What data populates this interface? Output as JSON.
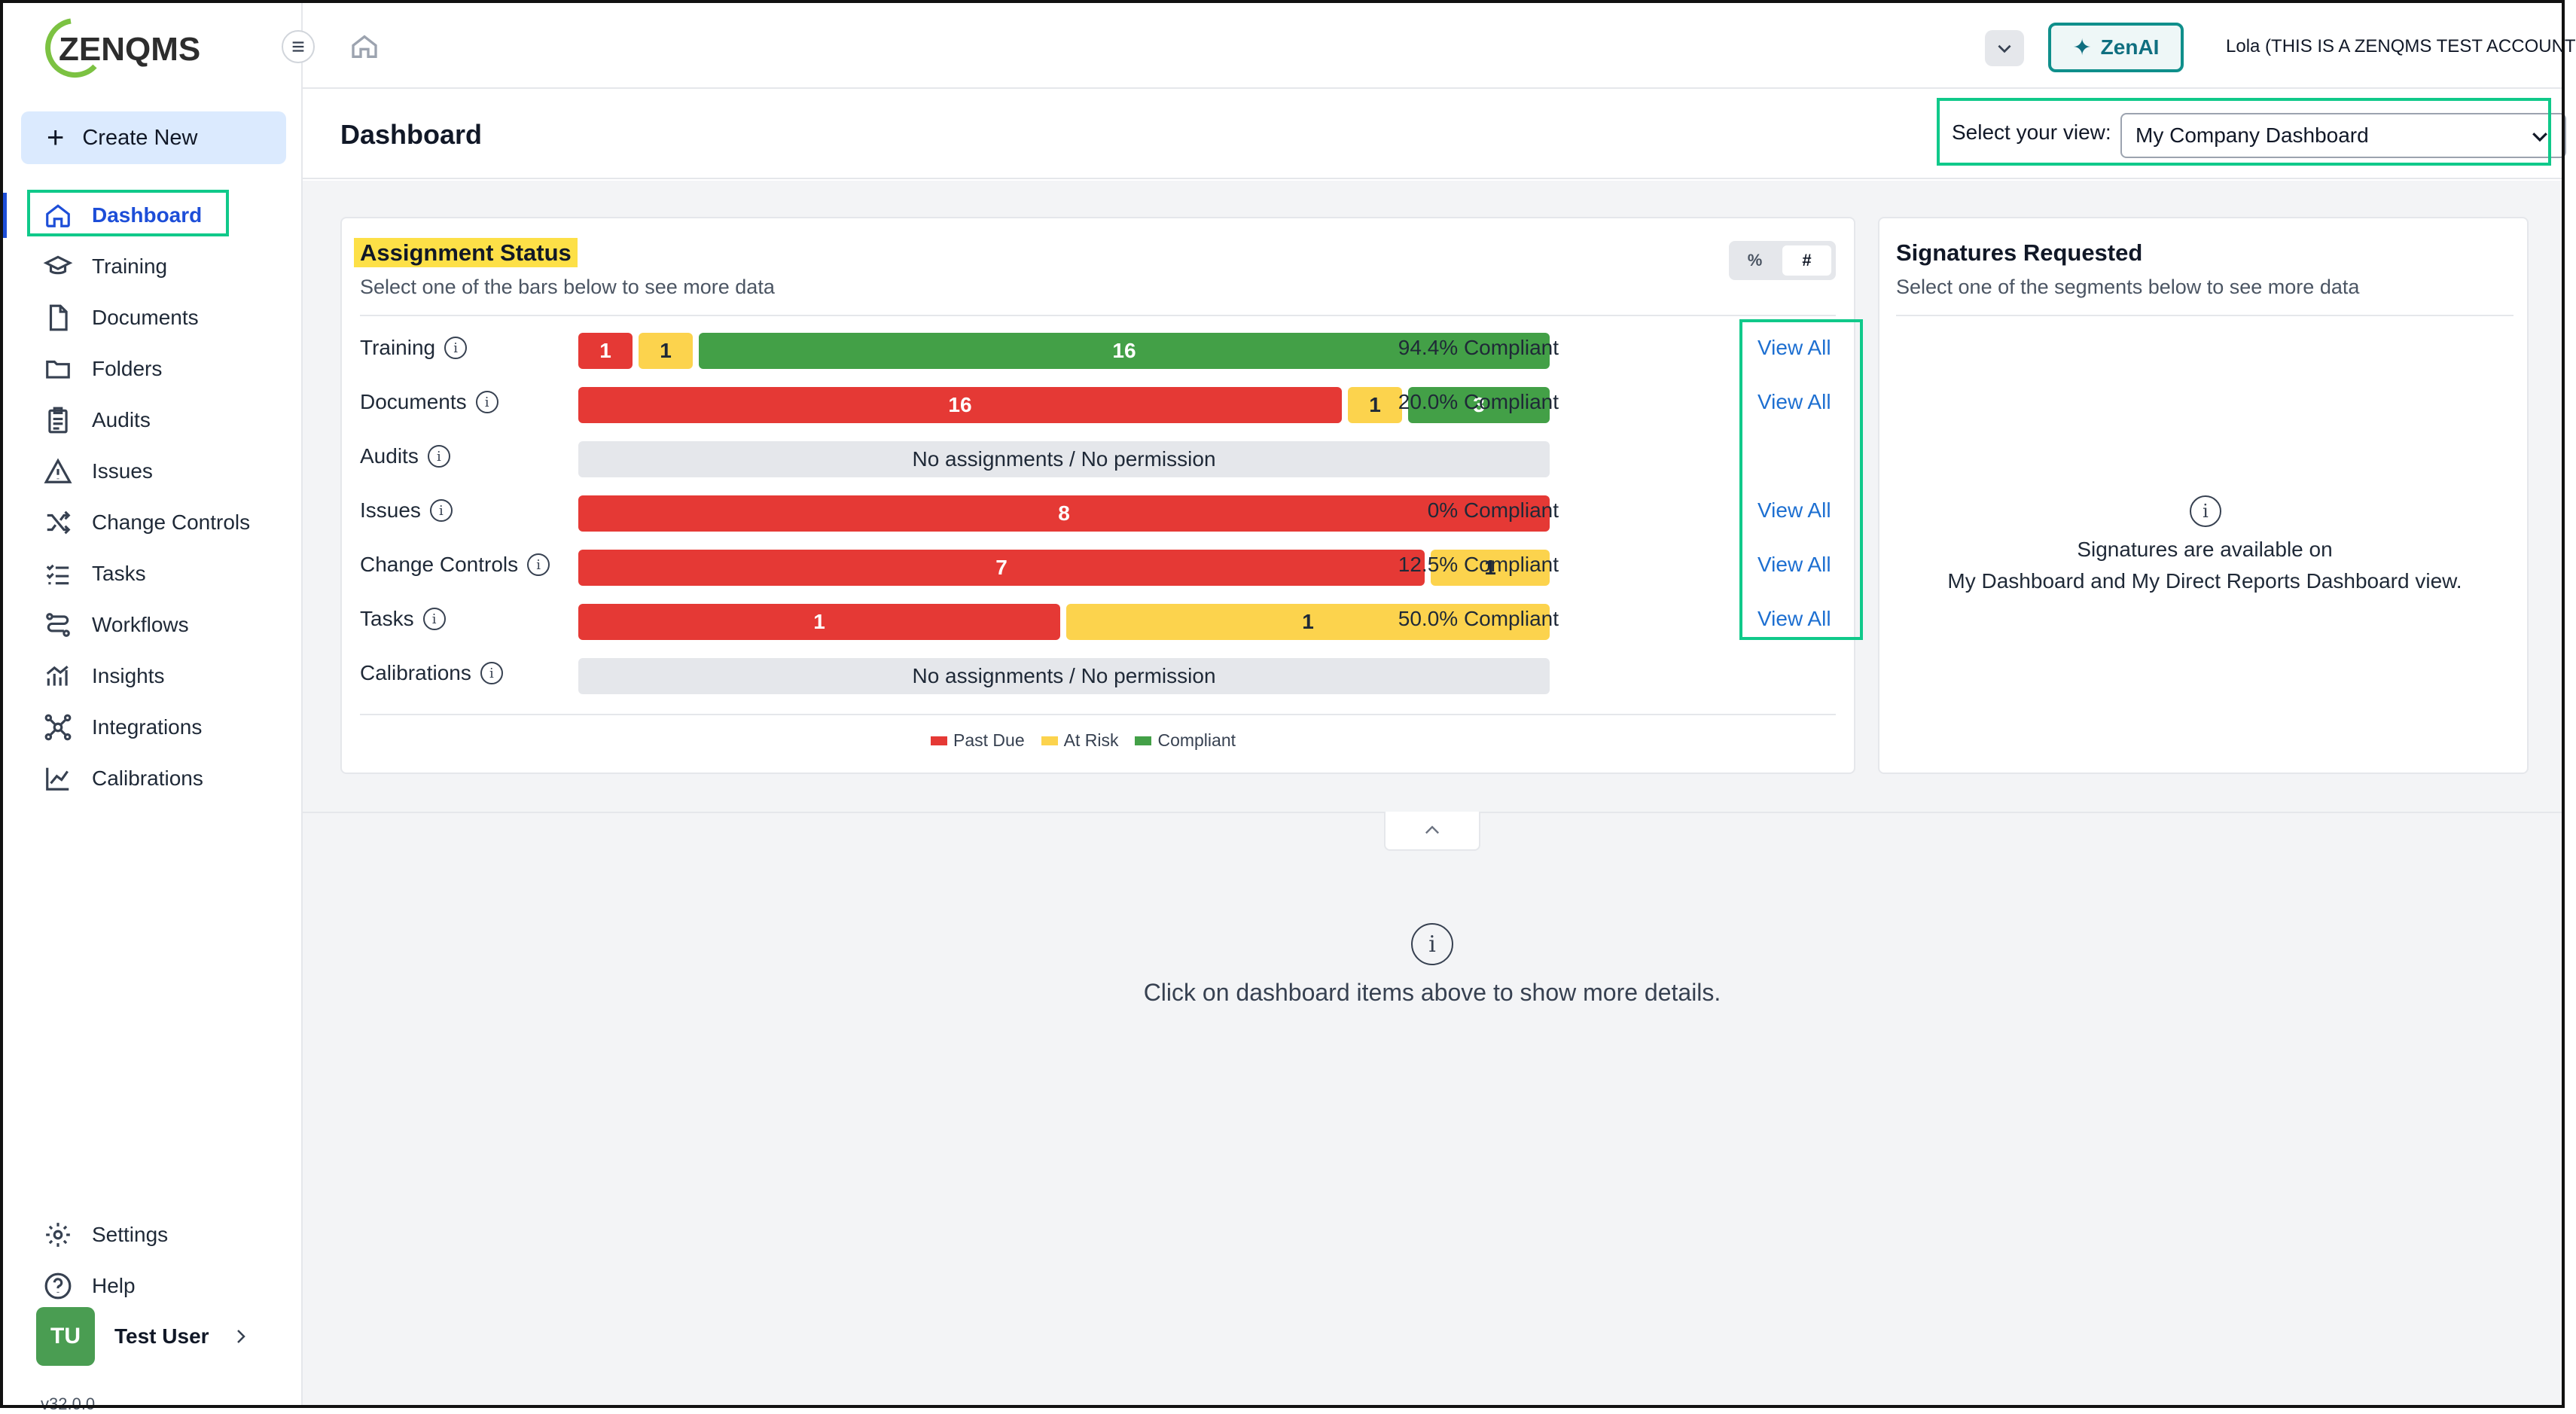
{
  "brand": {
    "name": "ZENQMS",
    "accent": "#1d4ed8",
    "highlight_color": "#10c98a"
  },
  "sidebar": {
    "create_new": "Create New",
    "items": [
      {
        "label": "Dashboard",
        "icon": "home-icon",
        "active": true
      },
      {
        "label": "Training",
        "icon": "graduation-cap-icon"
      },
      {
        "label": "Documents",
        "icon": "document-icon"
      },
      {
        "label": "Folders",
        "icon": "folder-icon"
      },
      {
        "label": "Audits",
        "icon": "clipboard-icon"
      },
      {
        "label": "Issues",
        "icon": "warning-icon"
      },
      {
        "label": "Change Controls",
        "icon": "shuffle-icon"
      },
      {
        "label": "Tasks",
        "icon": "checklist-icon"
      },
      {
        "label": "Workflows",
        "icon": "workflow-icon"
      },
      {
        "label": "Insights",
        "icon": "chart-icon"
      },
      {
        "label": "Integrations",
        "icon": "network-icon"
      },
      {
        "label": "Calibrations",
        "icon": "line-chart-icon"
      }
    ],
    "bottom_items": [
      {
        "label": "Settings",
        "icon": "gear-icon"
      },
      {
        "label": "Help",
        "icon": "help-icon"
      }
    ],
    "user": {
      "initials": "TU",
      "name": "Test User"
    },
    "version": "v32.0.0"
  },
  "topbar": {
    "zenai_label": "ZenAI",
    "account": "Lola (THIS IS A ZENQMS TEST ACCOUNT"
  },
  "page": {
    "title": "Dashboard",
    "view_label": "Select your view:",
    "view_value": "My Company Dashboard"
  },
  "assignment": {
    "title": "Assignment Status",
    "subtitle": "Select one of the bars below to see more data",
    "toggle": [
      "%",
      "#"
    ],
    "view_all": "View All",
    "no_access": "No assignments / No permission",
    "legend": [
      "Past Due",
      "At Risk",
      "Compliant"
    ],
    "rows": [
      {
        "label": "Training",
        "past_due": 1,
        "at_risk": 1,
        "compliant": 16,
        "compliance": "94.4% Compliant"
      },
      {
        "label": "Documents",
        "past_due": 16,
        "at_risk": 1,
        "compliant": 3,
        "compliance": "20.0% Compliant"
      },
      {
        "label": "Audits"
      },
      {
        "label": "Issues",
        "past_due": 8,
        "compliance": "0% Compliant"
      },
      {
        "label": "Change Controls",
        "past_due": 7,
        "at_risk": 1,
        "compliance": "12.5% Compliant"
      },
      {
        "label": "Tasks",
        "past_due": 1,
        "at_risk": 1,
        "compliance": "50.0% Compliant"
      },
      {
        "label": "Calibrations"
      }
    ]
  },
  "signatures": {
    "title": "Signatures Requested",
    "subtitle": "Select one of the segments below to see more data",
    "message_line1": "Signatures are available on",
    "message_line2": "My Dashboard and My Direct Reports Dashboard view."
  },
  "details": {
    "message": "Click on dashboard items above to show more details."
  }
}
